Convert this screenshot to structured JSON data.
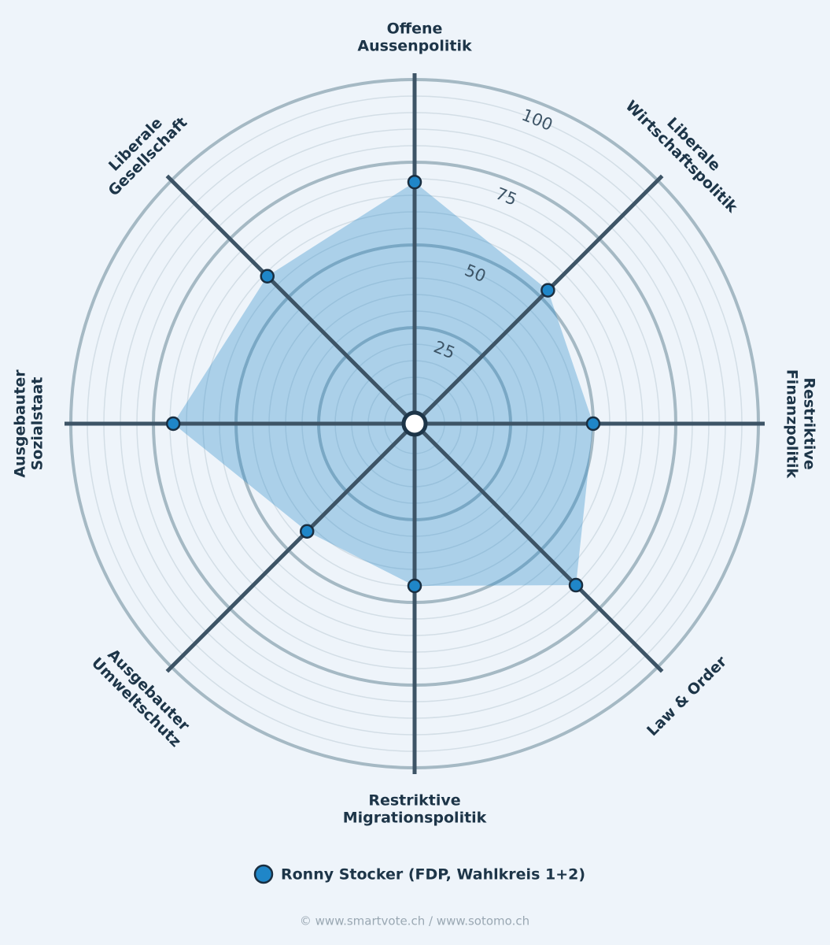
{
  "chart_data": {
    "type": "radar",
    "categories": [
      [
        "Offene",
        "Aussenpolitik"
      ],
      [
        "Liberale",
        "Wirtschaftspolitik"
      ],
      [
        "Restriktive",
        "Finanzpolitik"
      ],
      [
        "Law & Order"
      ],
      [
        "Restriktive",
        "Migrationspolitik"
      ],
      [
        "Ausgebauter",
        "Umweltschutz"
      ],
      [
        "Ausgebauter",
        "Sozialstaat"
      ],
      [
        "Liberale",
        "Gesellschaft"
      ]
    ],
    "series": [
      {
        "name": "Ronny Stocker (FDP, Wahlkreis 1+2)",
        "color": "#1f86c8",
        "values": [
          69,
          53,
          50,
          65,
          45,
          42,
          69,
          59
        ]
      }
    ],
    "ylim": [
      0,
      100
    ],
    "yticks": [
      25,
      50,
      75,
      100
    ],
    "footer": "© www.smartvote.ch / www.sotomo.ch"
  }
}
